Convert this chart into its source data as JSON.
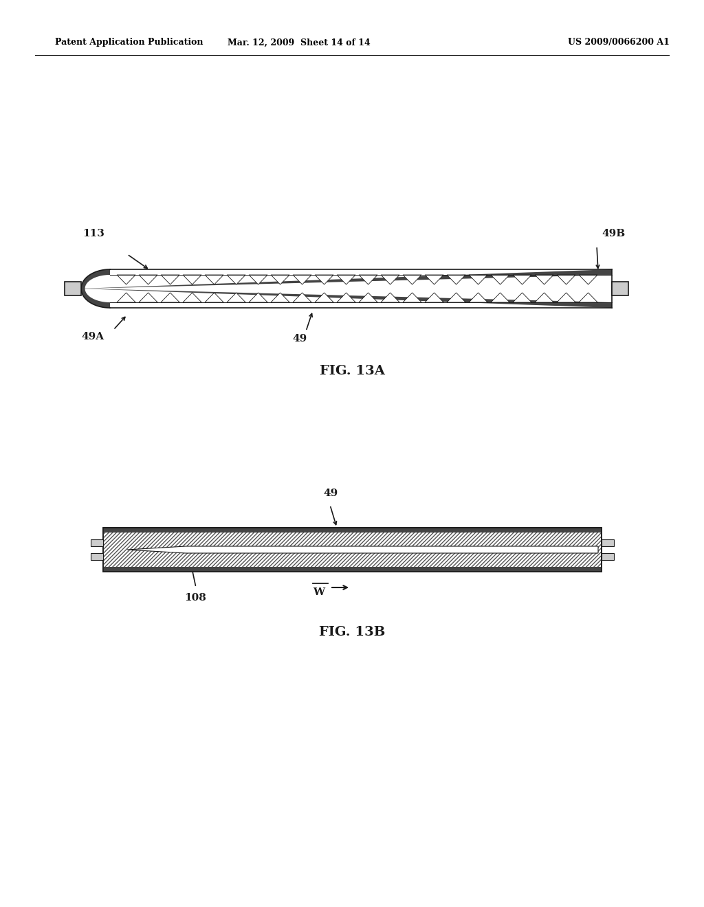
{
  "bg_color": "#ffffff",
  "header_left": "Patent Application Publication",
  "header_mid": "Mar. 12, 2009  Sheet 14 of 14",
  "header_right": "US 2009/0066200 A1",
  "fig13a_label": "FIG. 13A",
  "fig13b_label": "FIG. 13B",
  "dark": "#1a1a1a",
  "gray_med": "#888888",
  "gray_light": "#cccccc",
  "gray_stripe": "#444444"
}
